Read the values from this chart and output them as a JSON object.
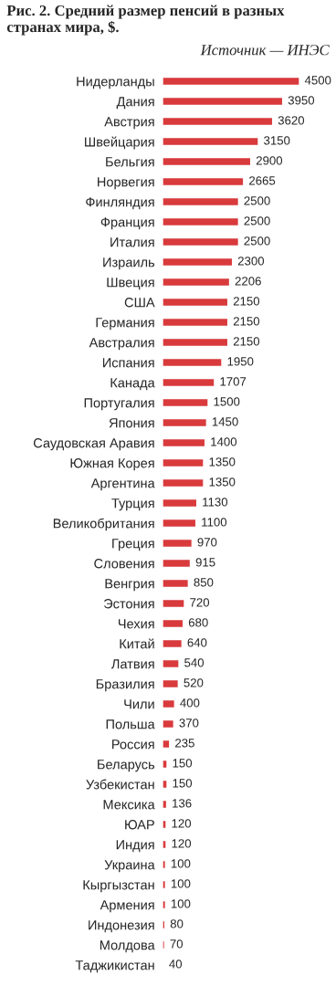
{
  "chart_data": {
    "type": "bar",
    "orientation": "horizontal",
    "title": "Рис. 2. Средний размер пенсий в разных странах мира, $.",
    "annotations": [
      "Источник — ИНЭС"
    ],
    "categories": [
      "Нидерланды",
      "Дания",
      "Австрия",
      "Швейцария",
      "Бельгия",
      "Норвегия",
      "Финляндия",
      "Франция",
      "Италия",
      "Израиль",
      "Швеция",
      "США",
      "Германия",
      "Австралия",
      "Испания",
      "Канада",
      "Португалия",
      "Япония",
      "Саудовская Аравия",
      "Южная Корея",
      "Аргентина",
      "Турция",
      "Великобритания",
      "Греция",
      "Словения",
      "Венгрия",
      "Эстония",
      "Чехия",
      "Китай",
      "Латвия",
      "Бразилия",
      "Чили",
      "Польша",
      "Россия",
      "Беларусь",
      "Узбекистан",
      "Мексика",
      "ЮАР",
      "Индия",
      "Украина",
      "Кыргызстан",
      "Армения",
      "Индонезия",
      "Молдова",
      "Таджикистан"
    ],
    "values": [
      4500,
      3950,
      3620,
      3150,
      2900,
      2665,
      2500,
      2500,
      2500,
      2300,
      2206,
      2150,
      2150,
      2150,
      1950,
      1707,
      1500,
      1450,
      1400,
      1350,
      1350,
      1130,
      1100,
      970,
      915,
      850,
      720,
      680,
      640,
      540,
      520,
      400,
      370,
      235,
      150,
      150,
      136,
      120,
      120,
      100,
      100,
      100,
      80,
      70,
      40
    ],
    "color": "#d93a3c",
    "data_labels": true,
    "grid": false,
    "legend": false
  }
}
